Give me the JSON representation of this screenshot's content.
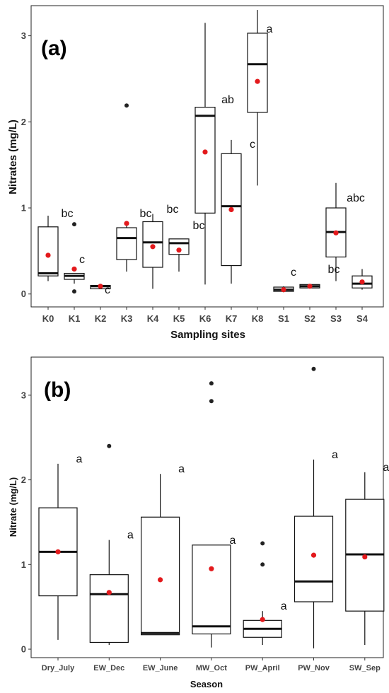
{
  "chart_data": [
    {
      "type": "boxplot",
      "panel_label": "(a)",
      "xlabel": "Sampling sites",
      "ylabel": "Nitrates (mg/L)",
      "ylim": [
        -0.15,
        3.35
      ],
      "yticks": [
        0,
        1,
        2,
        3
      ],
      "grid": false,
      "categories": [
        {
          "name": "K0",
          "q1": 0.21,
          "median": 0.24,
          "q3": 0.78,
          "low": 0.15,
          "high": 0.91,
          "mean": 0.45,
          "outliers": [],
          "letter": ""
        },
        {
          "name": "K1",
          "q1": 0.17,
          "median": 0.21,
          "q3": 0.24,
          "low": 0.12,
          "high": 0.24,
          "mean": 0.29,
          "outliers": [
            0.81,
            0.03
          ],
          "letter": "bc"
        },
        {
          "name": "K2",
          "q1": 0.06,
          "median": 0.09,
          "q3": 0.1,
          "low": 0.06,
          "high": 0.1,
          "mean": 0.09,
          "outliers": [],
          "letter": "c"
        },
        {
          "name": "K3",
          "q1": 0.4,
          "median": 0.65,
          "q3": 0.77,
          "low": 0.26,
          "high": 0.82,
          "mean": 0.82,
          "outliers": [
            2.19
          ],
          "letter": "c"
        },
        {
          "name": "K4",
          "q1": 0.31,
          "median": 0.6,
          "q3": 0.84,
          "low": 0.06,
          "high": 0.93,
          "mean": 0.55,
          "outliers": [],
          "letter": "bc"
        },
        {
          "name": "K5",
          "q1": 0.46,
          "median": 0.59,
          "q3": 0.64,
          "low": 0.26,
          "high": 0.64,
          "mean": 0.51,
          "outliers": [],
          "letter": "bc"
        },
        {
          "name": "K6",
          "q1": 0.94,
          "median": 2.07,
          "q3": 2.17,
          "low": 0.11,
          "high": 3.15,
          "mean": 1.65,
          "outliers": [],
          "letter": "bc"
        },
        {
          "name": "K7",
          "q1": 0.33,
          "median": 1.02,
          "q3": 1.63,
          "low": 0.12,
          "high": 1.79,
          "mean": 0.98,
          "outliers": [],
          "letter": "ab"
        },
        {
          "name": "K8",
          "q1": 2.11,
          "median": 2.67,
          "q3": 3.03,
          "low": 1.26,
          "high": 3.3,
          "mean": 2.47,
          "outliers": [],
          "letter": "a"
        },
        {
          "name": "S1",
          "q1": 0.03,
          "median": 0.05,
          "q3": 0.08,
          "low": 0.02,
          "high": 0.09,
          "mean": 0.05,
          "outliers": [],
          "letter": "c"
        },
        {
          "name": "S2",
          "q1": 0.07,
          "median": 0.09,
          "q3": 0.11,
          "low": 0.07,
          "high": 0.11,
          "mean": 0.09,
          "outliers": [],
          "letter": "c"
        },
        {
          "name": "S3",
          "q1": 0.43,
          "median": 0.72,
          "q3": 1.0,
          "low": 0.15,
          "high": 1.29,
          "mean": 0.71,
          "outliers": [],
          "letter": "bc"
        },
        {
          "name": "S4",
          "q1": 0.07,
          "median": 0.12,
          "q3": 0.21,
          "low": 0.05,
          "high": 0.29,
          "mean": 0.14,
          "outliers": [],
          "letter": "abc"
        }
      ]
    },
    {
      "type": "boxplot",
      "panel_label": "(b)",
      "xlabel": "Season",
      "ylabel": "Nitrate (mg/L)",
      "ylim": [
        -0.1,
        3.45
      ],
      "yticks": [
        0,
        1,
        2,
        3
      ],
      "grid": false,
      "categories": [
        {
          "name": "Dry_July",
          "q1": 0.63,
          "median": 1.15,
          "q3": 1.67,
          "low": 0.11,
          "high": 2.19,
          "mean": 1.15,
          "outliers": [],
          "letter": "a"
        },
        {
          "name": "EW_Dec",
          "q1": 0.08,
          "median": 0.65,
          "q3": 0.88,
          "low": 0.05,
          "high": 1.29,
          "mean": 0.67,
          "outliers": [
            2.4
          ],
          "letter": "a"
        },
        {
          "name": "EW_June",
          "q1": 0.17,
          "median": 0.19,
          "q3": 1.56,
          "low": 0.17,
          "high": 2.07,
          "mean": 0.82,
          "outliers": [],
          "letter": "a"
        },
        {
          "name": "MW_Oct",
          "q1": 0.18,
          "median": 0.27,
          "q3": 1.23,
          "low": 0.02,
          "high": 1.23,
          "mean": 0.95,
          "outliers": [
            3.14,
            2.93
          ],
          "letter": "a"
        },
        {
          "name": "PW_April",
          "q1": 0.14,
          "median": 0.24,
          "q3": 0.34,
          "low": 0.05,
          "high": 0.45,
          "mean": 0.35,
          "outliers": [
            1.25,
            1.0
          ],
          "letter": "a"
        },
        {
          "name": "PW_Nov",
          "q1": 0.56,
          "median": 0.8,
          "q3": 1.57,
          "low": 0.01,
          "high": 2.24,
          "mean": 1.11,
          "outliers": [
            3.31
          ],
          "letter": "a"
        },
        {
          "name": "SW_Sep",
          "q1": 0.45,
          "median": 1.12,
          "q3": 1.77,
          "low": 0.05,
          "high": 2.09,
          "mean": 1.09,
          "outliers": [],
          "letter": "a"
        }
      ]
    }
  ],
  "colors": {
    "box_fill": "#ffffff",
    "box_line": "#111111",
    "mean_point": "#e3191c",
    "outlier_point": "#222222"
  }
}
